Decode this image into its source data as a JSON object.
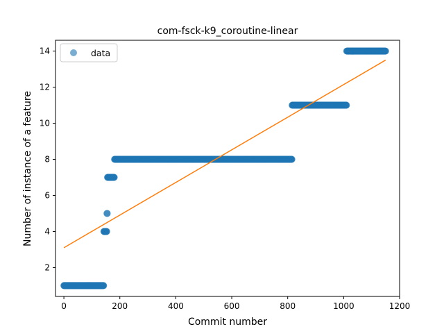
{
  "chart_data": {
    "type": "scatter",
    "title": "com-fsck-k9_coroutine-linear",
    "xlabel": "Commit number",
    "ylabel": "Number of instance of a feature",
    "xlim": [
      -30,
      1200
    ],
    "ylim": [
      0.4,
      14.6
    ],
    "xticks": [
      0,
      200,
      400,
      600,
      800,
      1000,
      1200
    ],
    "yticks": [
      2,
      4,
      6,
      8,
      10,
      12,
      14
    ],
    "grid": false,
    "legend": {
      "placement": "top-left",
      "entries": [
        {
          "label": "data",
          "marker": "circle"
        }
      ]
    },
    "colors": {
      "data": "#1f77b4",
      "fit": "#ff7f0e"
    },
    "segments": [
      {
        "y": 1,
        "x_start": 0,
        "x_end": 142
      },
      {
        "y": 4,
        "x_start": 143,
        "x_end": 153
      },
      {
        "y": 5,
        "x_start": 154,
        "x_end": 155
      },
      {
        "y": 7,
        "x_start": 156,
        "x_end": 180
      },
      {
        "y": 8,
        "x_start": 181,
        "x_end": 815
      },
      {
        "y": 11,
        "x_start": 816,
        "x_end": 1010
      },
      {
        "y": 14,
        "x_start": 1011,
        "x_end": 1150
      }
    ],
    "fit_line": {
      "x": [
        0,
        1150
      ],
      "y": [
        3.1,
        13.5
      ]
    }
  }
}
